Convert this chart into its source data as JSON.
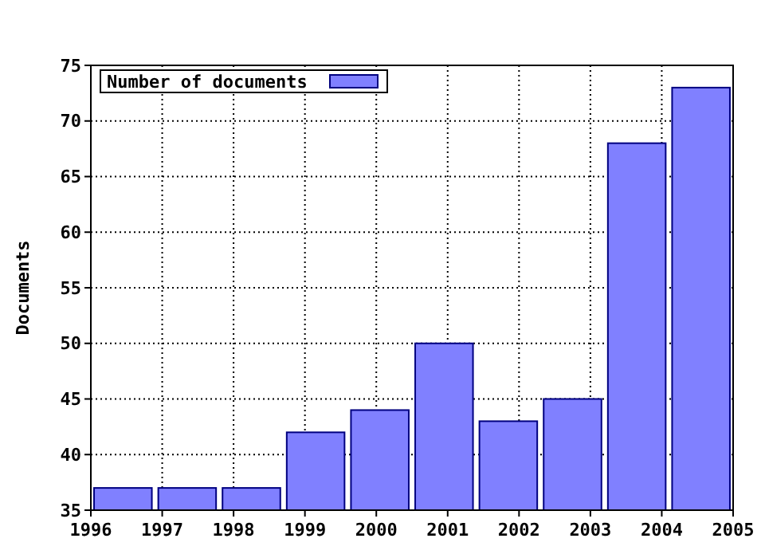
{
  "chart_data": {
    "type": "bar",
    "ylabel": "Documents",
    "categories": [
      "1996",
      "1997",
      "1998",
      "1999",
      "2000",
      "2001",
      "2002",
      "2003",
      "2004",
      "2005"
    ],
    "series": [
      {
        "name": "Number of documents",
        "color": "#8080ff",
        "values": [
          37,
          37,
          37,
          42,
          44,
          50,
          43,
          45,
          68,
          73
        ]
      }
    ],
    "ylim": [
      35,
      75
    ],
    "yticks": [
      35,
      40,
      45,
      50,
      55,
      60,
      65,
      70,
      75
    ],
    "grid": true,
    "legend": "top left"
  }
}
